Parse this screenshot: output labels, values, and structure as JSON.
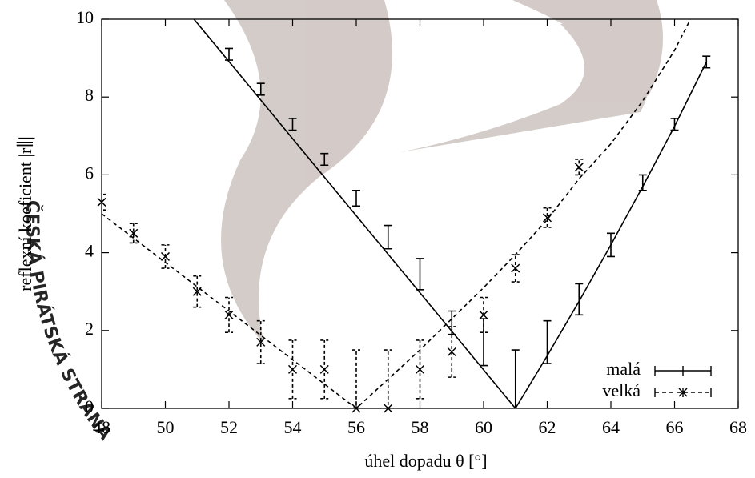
{
  "watermark": "ČESKÁ PIRÁTSKÁ STRANA",
  "chart_data": {
    "type": "errorbar",
    "x_label": "úhel dopadu θ [°]",
    "y_label": "reflexní koeficient |r∥|",
    "xlim": [
      48,
      68
    ],
    "ylim": [
      0,
      10
    ],
    "xticks": [
      48,
      50,
      52,
      54,
      56,
      58,
      60,
      62,
      64,
      66,
      68
    ],
    "yticks": [
      0,
      2,
      4,
      6,
      8,
      10
    ],
    "legend": "lower right",
    "series": [
      {
        "name": "malá",
        "color": "#000000",
        "dash": "solid",
        "marker": "none",
        "x": [
          52,
          53,
          54,
          55,
          56,
          57,
          58,
          59,
          60,
          61,
          62,
          63,
          64,
          65,
          66,
          67
        ],
        "values": [
          9.1,
          8.2,
          7.3,
          6.4,
          5.4,
          4.4,
          3.45,
          2.2,
          1.7,
          0,
          1.7,
          2.8,
          4.2,
          5.8,
          7.3,
          8.9
        ],
        "errors": [
          0.15,
          0.15,
          0.15,
          0.15,
          0.2,
          0.3,
          0.4,
          0.3,
          0.6,
          1.5,
          0.55,
          0.4,
          0.3,
          0.2,
          0.15,
          0.15
        ],
        "fit_x": [
          50.9,
          61,
          62,
          63,
          64,
          65,
          66,
          67
        ],
        "fit_y": [
          10,
          0,
          1.35,
          2.75,
          4.2,
          5.7,
          7.25,
          8.9
        ]
      },
      {
        "name": "velká",
        "color": "#000000",
        "dash": "dashed",
        "marker": "x",
        "x": [
          48,
          49,
          50,
          51,
          52,
          53,
          54,
          55,
          56,
          57,
          58,
          59,
          60,
          61,
          62,
          63
        ],
        "values": [
          5.3,
          4.5,
          3.9,
          3.0,
          2.4,
          1.7,
          1.0,
          1.0,
          0,
          0,
          1.0,
          1.45,
          2.4,
          3.6,
          4.9,
          6.2
        ],
        "errors": [
          0.2,
          0.25,
          0.3,
          0.4,
          0.45,
          0.55,
          0.75,
          0.75,
          1.5,
          1.5,
          0.75,
          0.65,
          0.45,
          0.35,
          0.25,
          0.2
        ],
        "fit_x": [
          48,
          50,
          52,
          54,
          56,
          57,
          58,
          59,
          60,
          61,
          62,
          63,
          64,
          65,
          66,
          66.5
        ],
        "fit_y": [
          5.0,
          3.75,
          2.5,
          1.25,
          0,
          0.75,
          1.5,
          2.3,
          3.1,
          3.95,
          4.85,
          5.9,
          6.8,
          7.9,
          9.2,
          10
        ]
      }
    ]
  }
}
